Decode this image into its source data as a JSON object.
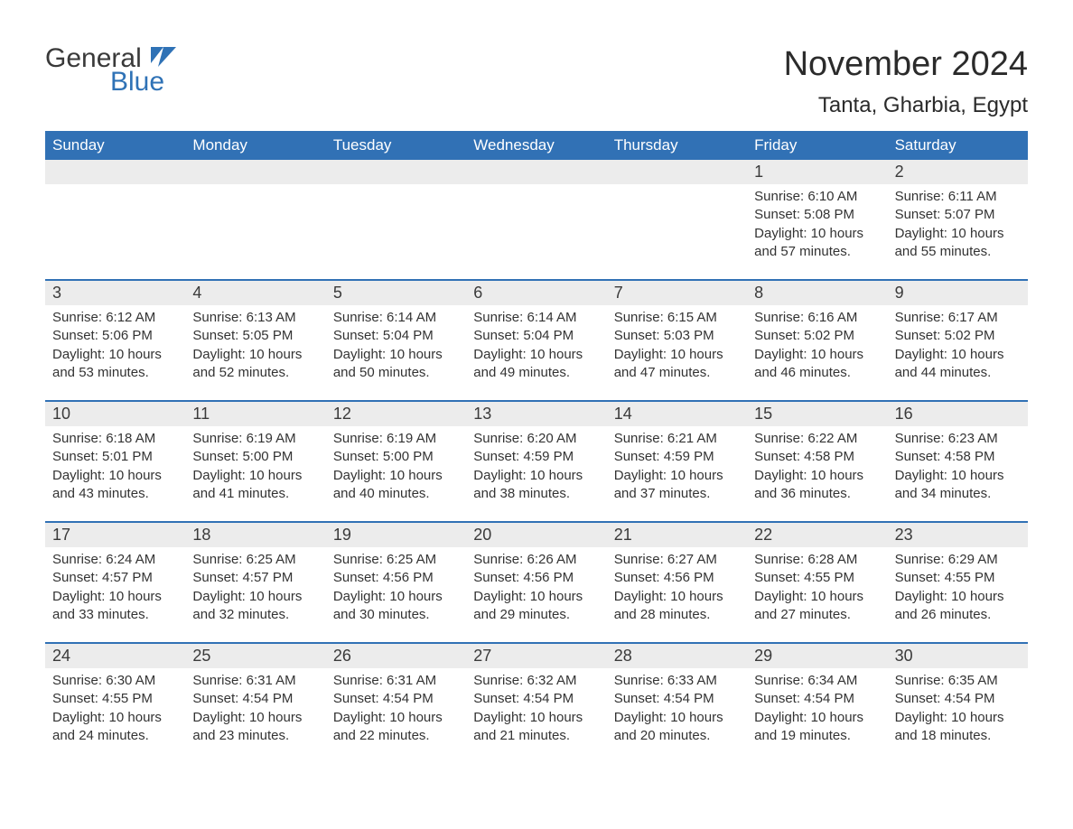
{
  "logo": {
    "general": "General",
    "blue": "Blue"
  },
  "logo_icon_color": "#2f72b6",
  "title": "November 2024",
  "location": "Tanta, Gharbia, Egypt",
  "header_bg": "#3171b5",
  "header_fg": "#ffffff",
  "daynum_bg": "#ececec",
  "week_border": "#3171b5",
  "text_color": "#333333",
  "label_sunrise": "Sunrise: ",
  "label_sunset": "Sunset: ",
  "label_daylight": "Daylight: ",
  "weekdays": [
    "Sunday",
    "Monday",
    "Tuesday",
    "Wednesday",
    "Thursday",
    "Friday",
    "Saturday"
  ],
  "weeks": [
    [
      null,
      null,
      null,
      null,
      null,
      {
        "n": "1",
        "sunrise": "6:10 AM",
        "sunset": "5:08 PM",
        "daylight": "10 hours and 57 minutes."
      },
      {
        "n": "2",
        "sunrise": "6:11 AM",
        "sunset": "5:07 PM",
        "daylight": "10 hours and 55 minutes."
      }
    ],
    [
      {
        "n": "3",
        "sunrise": "6:12 AM",
        "sunset": "5:06 PM",
        "daylight": "10 hours and 53 minutes."
      },
      {
        "n": "4",
        "sunrise": "6:13 AM",
        "sunset": "5:05 PM",
        "daylight": "10 hours and 52 minutes."
      },
      {
        "n": "5",
        "sunrise": "6:14 AM",
        "sunset": "5:04 PM",
        "daylight": "10 hours and 50 minutes."
      },
      {
        "n": "6",
        "sunrise": "6:14 AM",
        "sunset": "5:04 PM",
        "daylight": "10 hours and 49 minutes."
      },
      {
        "n": "7",
        "sunrise": "6:15 AM",
        "sunset": "5:03 PM",
        "daylight": "10 hours and 47 minutes."
      },
      {
        "n": "8",
        "sunrise": "6:16 AM",
        "sunset": "5:02 PM",
        "daylight": "10 hours and 46 minutes."
      },
      {
        "n": "9",
        "sunrise": "6:17 AM",
        "sunset": "5:02 PM",
        "daylight": "10 hours and 44 minutes."
      }
    ],
    [
      {
        "n": "10",
        "sunrise": "6:18 AM",
        "sunset": "5:01 PM",
        "daylight": "10 hours and 43 minutes."
      },
      {
        "n": "11",
        "sunrise": "6:19 AM",
        "sunset": "5:00 PM",
        "daylight": "10 hours and 41 minutes."
      },
      {
        "n": "12",
        "sunrise": "6:19 AM",
        "sunset": "5:00 PM",
        "daylight": "10 hours and 40 minutes."
      },
      {
        "n": "13",
        "sunrise": "6:20 AM",
        "sunset": "4:59 PM",
        "daylight": "10 hours and 38 minutes."
      },
      {
        "n": "14",
        "sunrise": "6:21 AM",
        "sunset": "4:59 PM",
        "daylight": "10 hours and 37 minutes."
      },
      {
        "n": "15",
        "sunrise": "6:22 AM",
        "sunset": "4:58 PM",
        "daylight": "10 hours and 36 minutes."
      },
      {
        "n": "16",
        "sunrise": "6:23 AM",
        "sunset": "4:58 PM",
        "daylight": "10 hours and 34 minutes."
      }
    ],
    [
      {
        "n": "17",
        "sunrise": "6:24 AM",
        "sunset": "4:57 PM",
        "daylight": "10 hours and 33 minutes."
      },
      {
        "n": "18",
        "sunrise": "6:25 AM",
        "sunset": "4:57 PM",
        "daylight": "10 hours and 32 minutes."
      },
      {
        "n": "19",
        "sunrise": "6:25 AM",
        "sunset": "4:56 PM",
        "daylight": "10 hours and 30 minutes."
      },
      {
        "n": "20",
        "sunrise": "6:26 AM",
        "sunset": "4:56 PM",
        "daylight": "10 hours and 29 minutes."
      },
      {
        "n": "21",
        "sunrise": "6:27 AM",
        "sunset": "4:56 PM",
        "daylight": "10 hours and 28 minutes."
      },
      {
        "n": "22",
        "sunrise": "6:28 AM",
        "sunset": "4:55 PM",
        "daylight": "10 hours and 27 minutes."
      },
      {
        "n": "23",
        "sunrise": "6:29 AM",
        "sunset": "4:55 PM",
        "daylight": "10 hours and 26 minutes."
      }
    ],
    [
      {
        "n": "24",
        "sunrise": "6:30 AM",
        "sunset": "4:55 PM",
        "daylight": "10 hours and 24 minutes."
      },
      {
        "n": "25",
        "sunrise": "6:31 AM",
        "sunset": "4:54 PM",
        "daylight": "10 hours and 23 minutes."
      },
      {
        "n": "26",
        "sunrise": "6:31 AM",
        "sunset": "4:54 PM",
        "daylight": "10 hours and 22 minutes."
      },
      {
        "n": "27",
        "sunrise": "6:32 AM",
        "sunset": "4:54 PM",
        "daylight": "10 hours and 21 minutes."
      },
      {
        "n": "28",
        "sunrise": "6:33 AM",
        "sunset": "4:54 PM",
        "daylight": "10 hours and 20 minutes."
      },
      {
        "n": "29",
        "sunrise": "6:34 AM",
        "sunset": "4:54 PM",
        "daylight": "10 hours and 19 minutes."
      },
      {
        "n": "30",
        "sunrise": "6:35 AM",
        "sunset": "4:54 PM",
        "daylight": "10 hours and 18 minutes."
      }
    ]
  ]
}
